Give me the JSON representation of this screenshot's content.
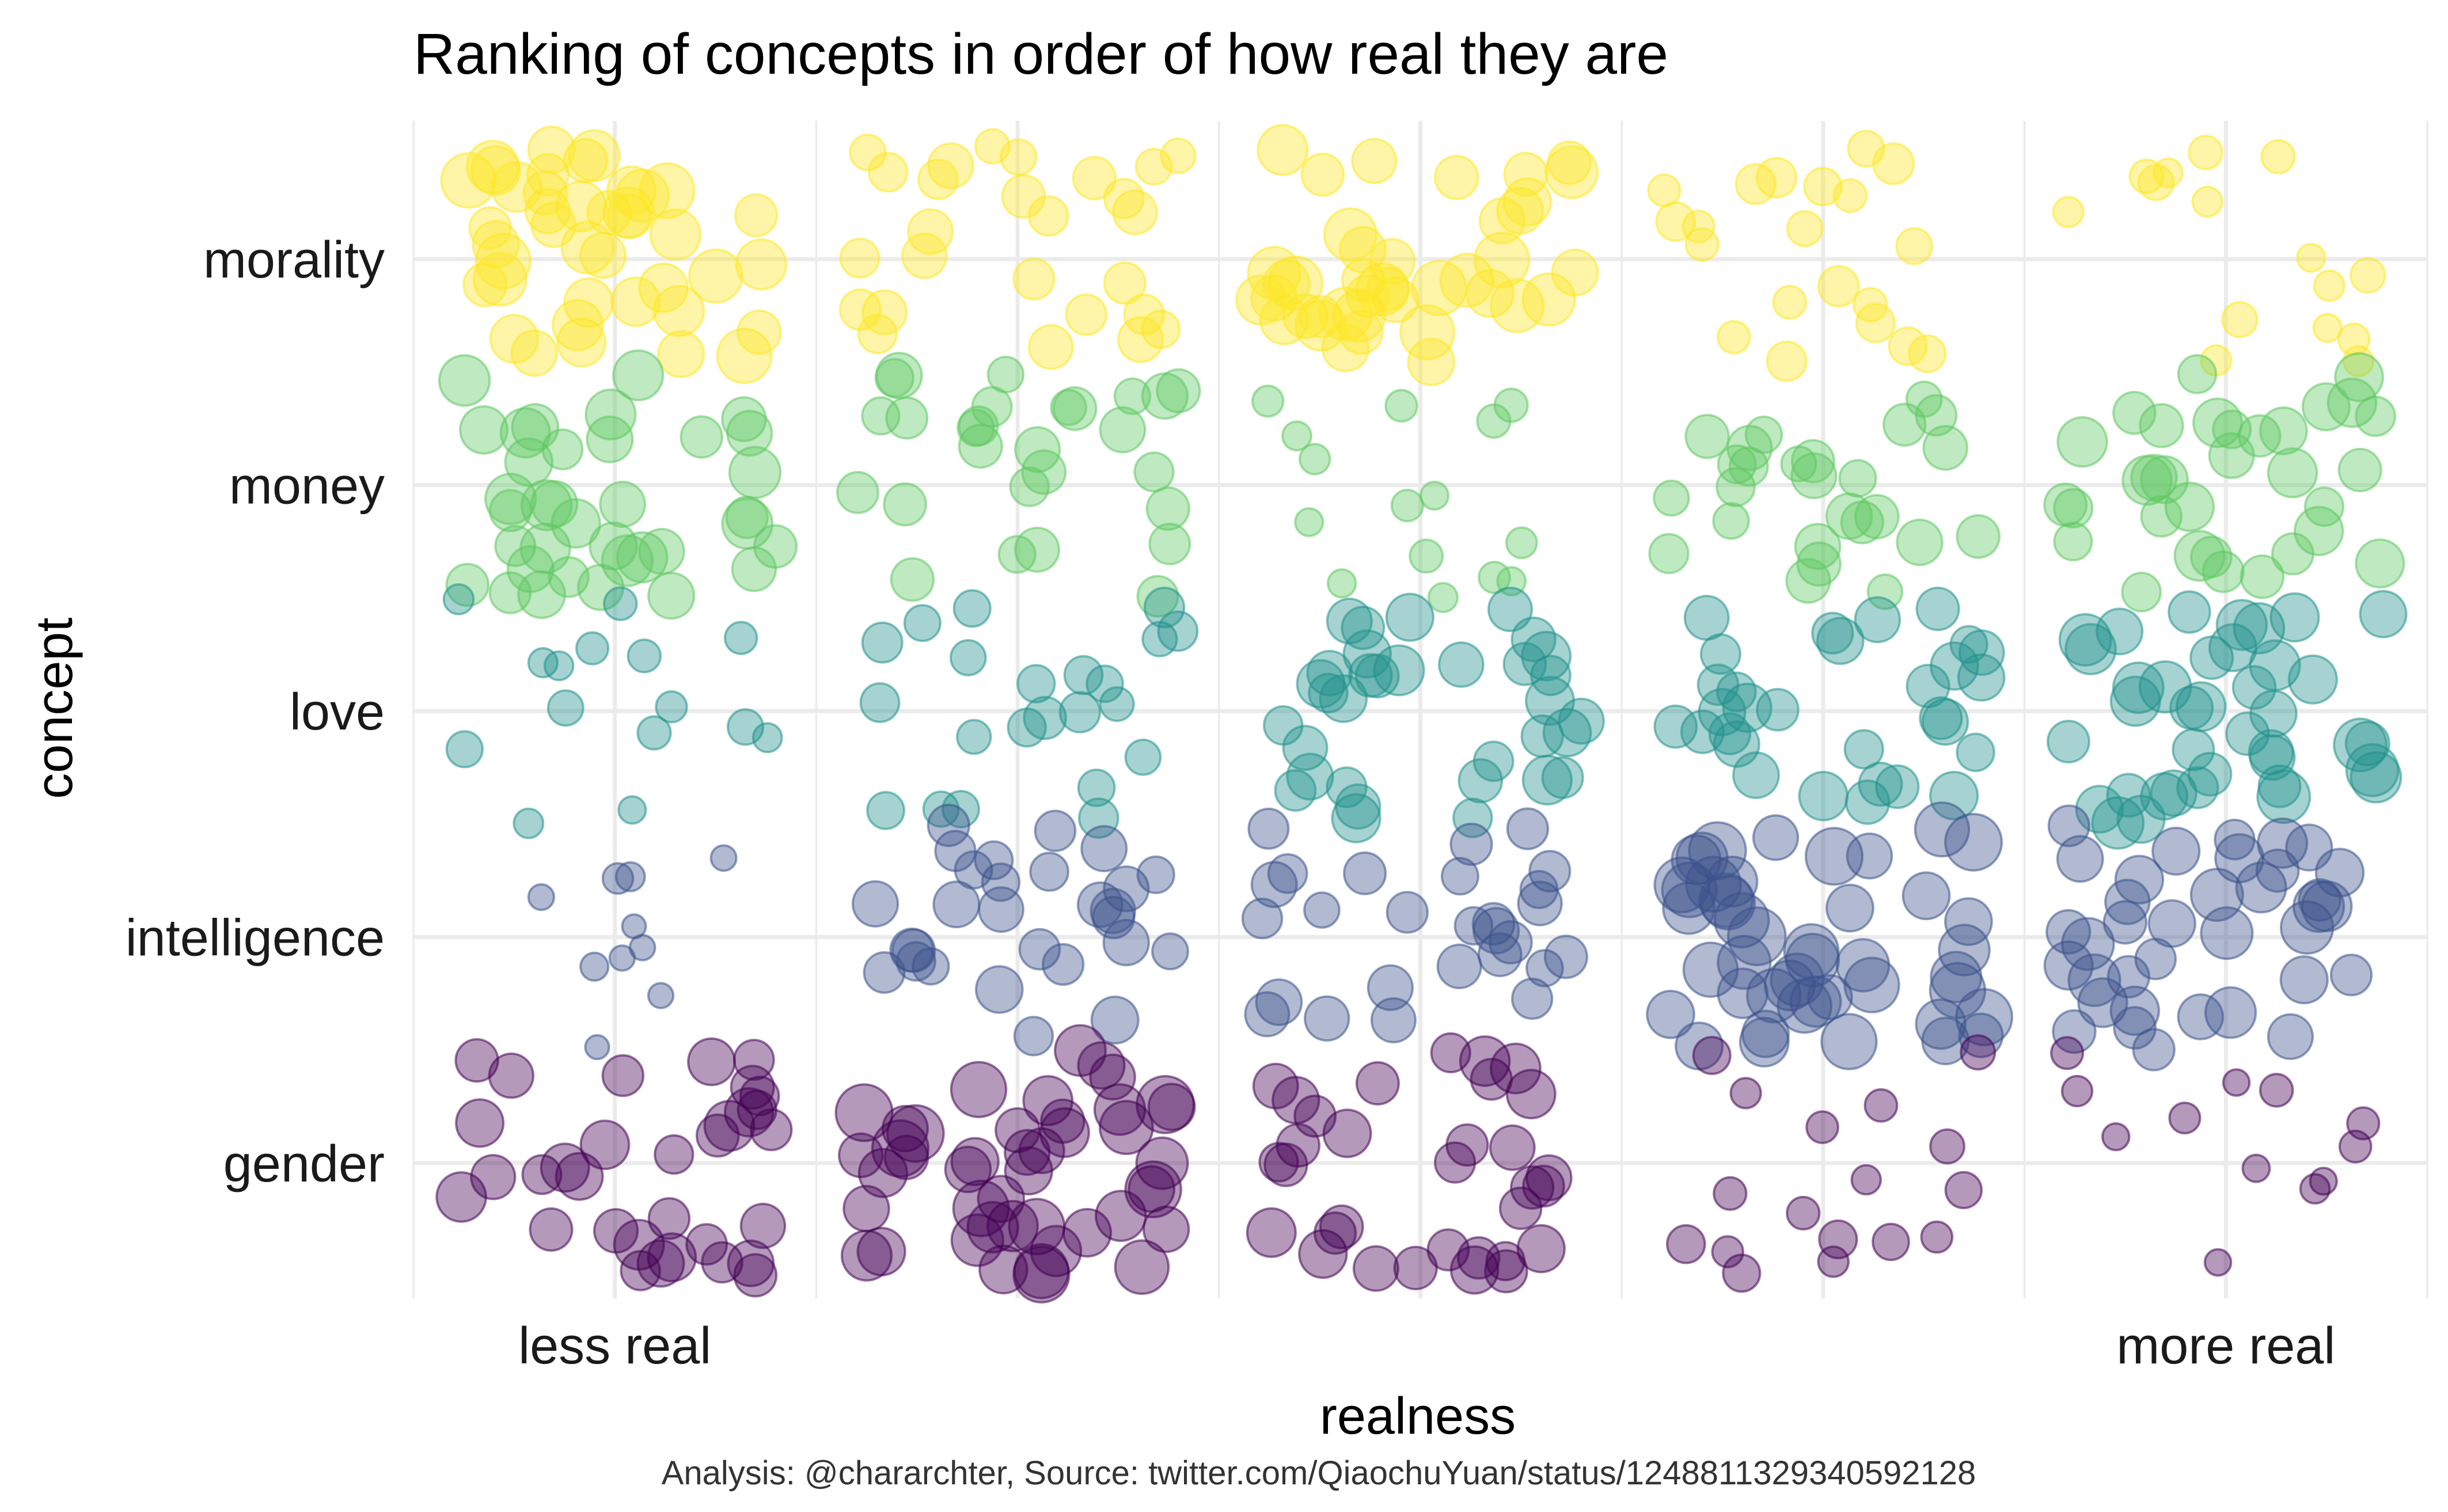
{
  "chart_data": {
    "type": "scatter",
    "title": "Ranking of concepts in order of how real they are",
    "xlabel": "realness",
    "ylabel": "concept",
    "caption": "Analysis: @chararchter, Source: twitter.com/QiaochuYuan/status/1248811329340592128",
    "x_tick_labels": [
      {
        "position": 1,
        "label": "less real"
      },
      {
        "position": 5,
        "label": "more real"
      }
    ],
    "x_range": [
      0.5,
      5.5
    ],
    "realness_levels": [
      1,
      2,
      3,
      4,
      5
    ],
    "categories": [
      "morality",
      "money",
      "love",
      "intelligence",
      "gender"
    ],
    "jitter": 0.4,
    "point_alpha": 0.4,
    "grid": true,
    "legend": "none",
    "series": [
      {
        "category": "morality",
        "color": "#fde725",
        "counts": [
          40,
          26,
          40,
          20,
          15
        ],
        "point_size": "proportional to count"
      },
      {
        "category": "money",
        "color": "#5ec962",
        "counts": [
          36,
          27,
          15,
          26,
          32
        ],
        "point_size": "proportional to count"
      },
      {
        "category": "love",
        "color": "#21918c",
        "counts": [
          15,
          22,
          33,
          30,
          38
        ],
        "point_size": "proportional to count"
      },
      {
        "category": "intelligence",
        "color": "#3b528b",
        "counts": [
          10,
          28,
          27,
          45,
          36
        ],
        "point_size": "proportional to count"
      },
      {
        "category": "gender",
        "color": "#440154",
        "counts": [
          32,
          44,
          32,
          17,
          12
        ],
        "point_size": "proportional to count"
      }
    ]
  }
}
